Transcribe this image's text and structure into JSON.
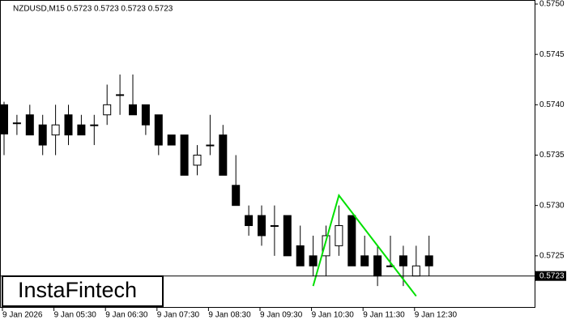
{
  "chart_data": {
    "type": "candlestick",
    "header": "NZDUSD,M15  0.5723 0.5723 0.5723 0.5723",
    "logo": "InstaFintech",
    "categories": [
      "9 Jan 2026",
      null,
      null,
      null,
      "9 Jan 05:30",
      null,
      null,
      null,
      "9 Jan 06:30",
      null,
      null,
      null,
      "9 Jan 07:30",
      null,
      null,
      null,
      "9 Jan 08:30",
      null,
      null,
      null,
      "9 Jan 09:30",
      null,
      null,
      null,
      "9 Jan 10:30",
      null,
      null,
      null,
      "9 Jan 11:30",
      null,
      null,
      null,
      "9 Jan 12:30",
      null
    ],
    "open": [
      0.574,
      0.57382,
      0.5739,
      0.5738,
      0.5737,
      0.5739,
      0.5738,
      0.5738,
      0.5739,
      0.5741,
      0.574,
      0.574,
      0.5739,
      0.5737,
      0.5737,
      0.5734,
      0.5736,
      0.5737,
      0.5732,
      0.5729,
      0.5729,
      0.5728,
      0.5729,
      0.5726,
      0.5725,
      0.5725,
      0.5726,
      0.5729,
      0.5725,
      0.5725,
      0.5724,
      0.5725,
      0.5723,
      0.5725
    ],
    "high": [
      0.57403,
      0.5739,
      0.574,
      0.5739,
      0.574,
      0.574,
      0.5739,
      0.5739,
      0.5742,
      0.5743,
      0.5743,
      0.574,
      0.5739,
      0.5737,
      0.5737,
      0.5736,
      0.5739,
      0.5738,
      0.5735,
      0.573,
      0.573,
      0.573,
      0.5729,
      0.5728,
      0.5727,
      0.5728,
      0.573,
      0.5729,
      0.5727,
      0.5726,
      0.5727,
      0.5726,
      0.5726,
      0.5727
    ],
    "low": [
      0.5735,
      0.5737,
      0.5737,
      0.5735,
      0.5735,
      0.5736,
      0.5737,
      0.5736,
      0.5738,
      0.5739,
      0.5739,
      0.5737,
      0.5735,
      0.5736,
      0.5733,
      0.5733,
      0.5735,
      0.5733,
      0.573,
      0.5727,
      0.5726,
      0.5725,
      0.5725,
      0.5724,
      0.5723,
      0.5723,
      0.5725,
      0.5724,
      0.5724,
      0.5722,
      0.5724,
      0.5722,
      0.5723,
      0.5723
    ],
    "close": [
      0.57371,
      0.57382,
      0.5737,
      0.5736,
      0.5738,
      0.5737,
      0.5737,
      0.5738,
      0.574,
      0.5741,
      0.5739,
      0.5738,
      0.5736,
      0.5736,
      0.5733,
      0.5735,
      0.5736,
      0.5733,
      0.573,
      0.5728,
      0.5727,
      0.5728,
      0.5725,
      0.5724,
      0.5724,
      0.5727,
      0.5728,
      0.5724,
      0.5724,
      0.5723,
      0.5724,
      0.5724,
      0.5724,
      0.5724
    ],
    "up_color": "#ffffff",
    "down_color": "#000000",
    "pattern": {
      "color": "#00e000",
      "x_index": [
        24,
        26,
        32
      ],
      "values": [
        0.5722,
        0.5731,
        0.5721
      ]
    },
    "last_price": {
      "value": 0.5723,
      "label": "0.5723"
    },
    "ylim": [
      0.572,
      0.575
    ],
    "yticks": [
      0.5725,
      {
        "value": 0.573,
        "label": "0.5730"
      },
      0.5735,
      {
        "value": 0.574,
        "label": "0.5740"
      },
      0.5745,
      {
        "value": 0.575,
        "label": "0.5750"
      }
    ]
  }
}
